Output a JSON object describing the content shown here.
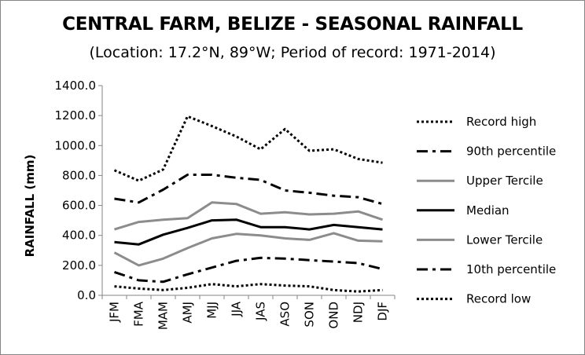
{
  "chart_data": {
    "type": "line",
    "title": "CENTRAL FARM, BELIZE - SEASONAL RAINFALL",
    "subtitle": "(Location: 17.2°N, 89°W; Period of record: 1971-2014)",
    "xlabel": "",
    "ylabel": "RAINFALL (mm)",
    "ylim": [
      0,
      1400
    ],
    "yticks": [
      "0.0",
      "200.0",
      "400.0",
      "600.0",
      "800.0",
      "1000.0",
      "1200.0",
      "1400.0"
    ],
    "categories": [
      "JFM",
      "FMA",
      "MAM",
      "AMJ",
      "MJJ",
      "JJA",
      "JAS",
      "ASO",
      "SON",
      "OND",
      "NDJ",
      "DJF"
    ],
    "grid": false,
    "legend_position": "right",
    "series": [
      {
        "name": "Record high",
        "style": "dotted",
        "color": "#000000",
        "width": 3,
        "values": [
          835,
          765,
          840,
          1195,
          1130,
          1060,
          975,
          1110,
          965,
          975,
          910,
          885
        ]
      },
      {
        "name": "90th percentile",
        "style": "dashdot",
        "color": "#000000",
        "width": 3,
        "values": [
          645,
          620,
          705,
          805,
          805,
          785,
          770,
          700,
          685,
          665,
          655,
          610
        ]
      },
      {
        "name": "Upper Tercile",
        "style": "solid",
        "color": "#8c8c8c",
        "width": 3,
        "values": [
          440,
          490,
          505,
          515,
          620,
          610,
          545,
          555,
          540,
          545,
          560,
          505
        ]
      },
      {
        "name": "Median",
        "style": "solid",
        "color": "#000000",
        "width": 3,
        "values": [
          355,
          340,
          405,
          450,
          500,
          505,
          455,
          455,
          440,
          470,
          455,
          440
        ]
      },
      {
        "name": "Lower Tercile",
        "style": "solid",
        "color": "#8c8c8c",
        "width": 3,
        "values": [
          285,
          200,
          245,
          315,
          380,
          410,
          400,
          380,
          370,
          415,
          365,
          360
        ]
      },
      {
        "name": "10th percentile",
        "style": "dashdot",
        "color": "#000000",
        "width": 3,
        "values": [
          155,
          100,
          90,
          140,
          185,
          230,
          250,
          245,
          235,
          225,
          215,
          175
        ]
      },
      {
        "name": "Record low",
        "style": "dotted",
        "color": "#000000",
        "width": 3,
        "values": [
          60,
          45,
          35,
          50,
          75,
          60,
          75,
          65,
          60,
          35,
          25,
          35
        ]
      }
    ]
  }
}
